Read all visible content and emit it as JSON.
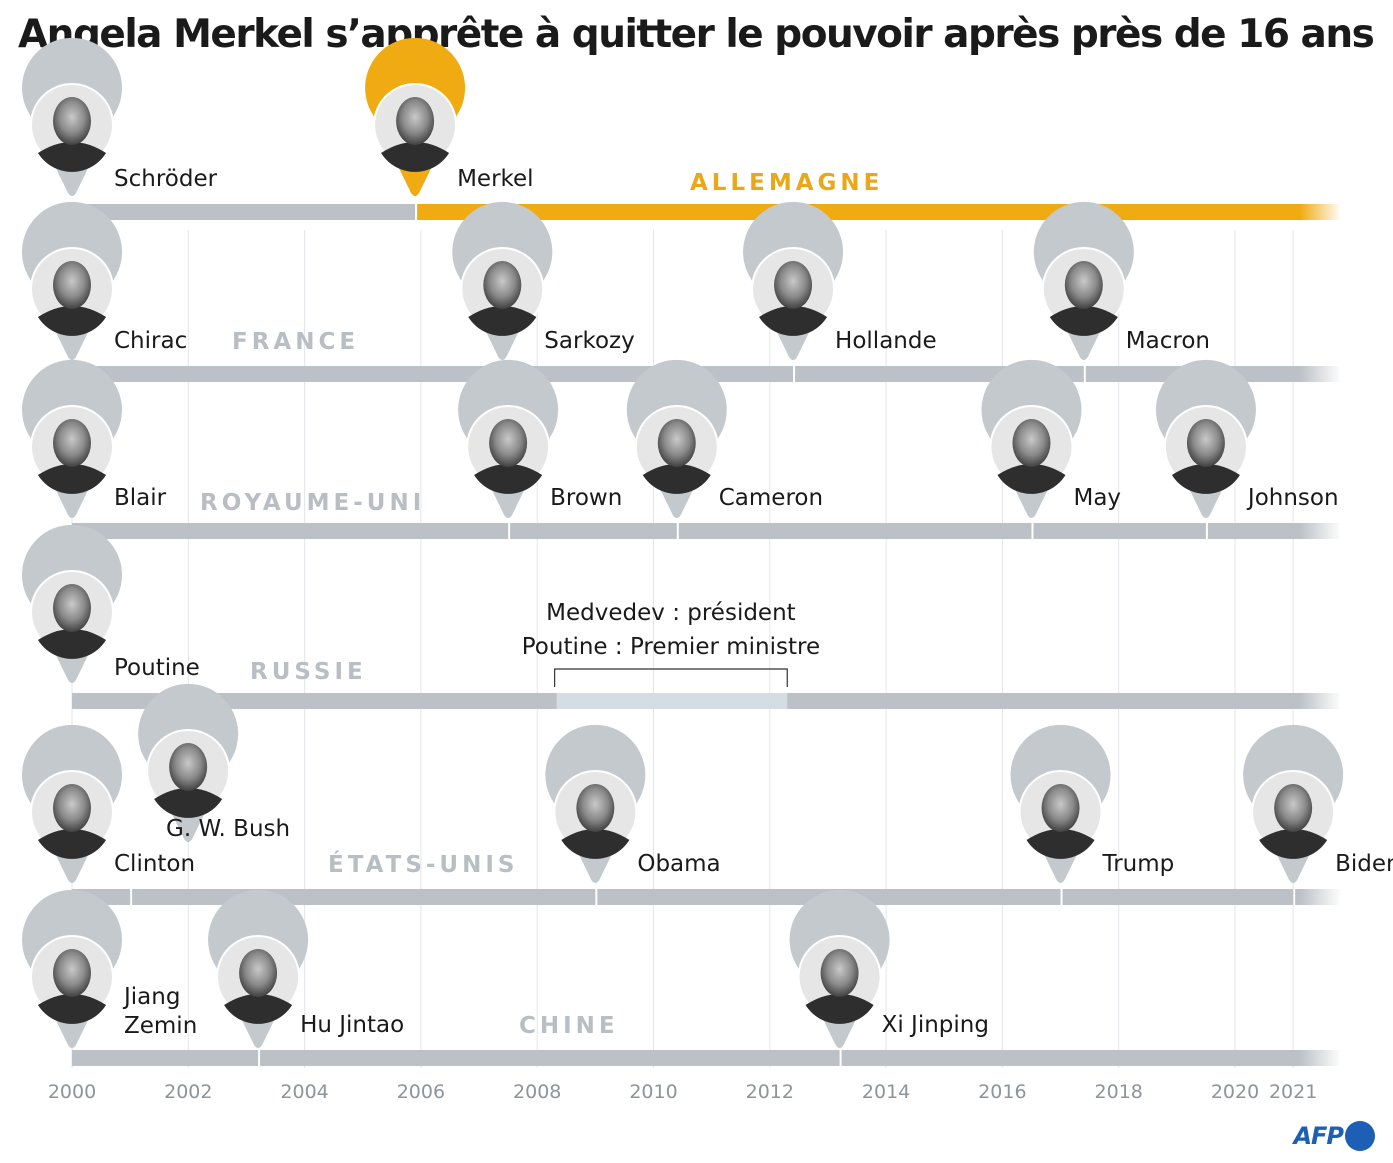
{
  "title": "Angela Merkel s’apprête à quitter le pouvoir après près de 16 ans",
  "logo": {
    "text": "AFP"
  },
  "colors": {
    "highlight": "#f0aa12",
    "bar": "#bcc1c7",
    "bar_light": "#d5dde4",
    "grid": "#e4e6e9"
  },
  "chart_data": {
    "type": "timeline",
    "title": "Angela Merkel s’apprête à quitter le pouvoir après près de 16 ans",
    "x_range": [
      2000,
      2021.8
    ],
    "tick_labels": [
      "2000",
      "2002",
      "2004",
      "2006",
      "2008",
      "2010",
      "2012",
      "2014",
      "2016",
      "2018",
      "2020",
      "2021"
    ],
    "tick_values": [
      2000,
      2002,
      2004,
      2006,
      2008,
      2010,
      2012,
      2014,
      2016,
      2018,
      2020,
      2021
    ],
    "rows": [
      {
        "country": "ALLEMAGNE",
        "highlight": true,
        "leaders": [
          {
            "name": "Schröder",
            "start": 2000.0,
            "end": 2005.9
          },
          {
            "name": "Merkel",
            "start": 2005.9,
            "end": 2021.8,
            "highlight": true
          }
        ]
      },
      {
        "country": "FRANCE",
        "leaders": [
          {
            "name": "Chirac",
            "start": 2000.0,
            "end": 2007.4
          },
          {
            "name": "Sarkozy",
            "start": 2007.4,
            "end": 2012.4
          },
          {
            "name": "Hollande",
            "start": 2012.4,
            "end": 2017.4
          },
          {
            "name": "Macron",
            "start": 2017.4,
            "end": 2021.8
          }
        ]
      },
      {
        "country": "ROYAUME-UNI",
        "leaders": [
          {
            "name": "Blair",
            "start": 2000.0,
            "end": 2007.5
          },
          {
            "name": "Brown",
            "start": 2007.5,
            "end": 2010.4
          },
          {
            "name": "Cameron",
            "start": 2010.4,
            "end": 2016.5
          },
          {
            "name": "May",
            "start": 2016.5,
            "end": 2019.5
          },
          {
            "name": "Johnson",
            "start": 2019.5,
            "end": 2021.8
          }
        ]
      },
      {
        "country": "RUSSIE",
        "leaders": [
          {
            "name": "Poutine",
            "start": 2000.0,
            "end": 2021.8
          }
        ],
        "interval": {
          "start": 2008.3,
          "end": 2012.3,
          "lines": [
            "Medvedev : président",
            "Poutine : Premier ministre"
          ]
        }
      },
      {
        "country": "ÉTATS-UNIS",
        "leaders": [
          {
            "name": "Clinton",
            "start": 2000.0,
            "end": 2001.0
          },
          {
            "name": "G. W. Bush",
            "start": 2001.0,
            "end": 2009.0
          },
          {
            "name": "Obama",
            "start": 2009.0,
            "end": 2017.0
          },
          {
            "name": "Trump",
            "start": 2017.0,
            "end": 2021.0
          },
          {
            "name": "Biden",
            "start": 2021.0,
            "end": 2021.8
          }
        ]
      },
      {
        "country": "CHINE",
        "leaders": [
          {
            "name": "Jiang Zemin",
            "start": 2000.0,
            "end": 2003.2
          },
          {
            "name": "Hu Jintao",
            "start": 2003.2,
            "end": 2013.2
          },
          {
            "name": "Xi Jinping",
            "start": 2013.2,
            "end": 2021.8
          }
        ]
      }
    ]
  }
}
